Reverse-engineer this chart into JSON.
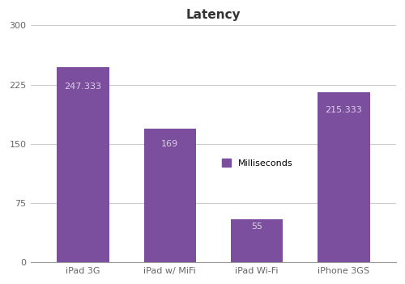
{
  "categories": [
    "iPad 3G",
    "iPad w/ MiFi",
    "iPad Wi-Fi",
    "iPhone 3GS"
  ],
  "values": [
    247.333,
    169,
    55,
    215.333
  ],
  "labels": [
    "247.333",
    "169",
    "55",
    "215.333"
  ],
  "bar_color": "#7B4F9E",
  "title": "Latency",
  "legend_label": "Milliseconds",
  "ylim": [
    0,
    300
  ],
  "yticks": [
    0,
    75,
    150,
    225,
    300
  ],
  "ytick_labels": [
    "0",
    "75",
    "150",
    "225",
    "300"
  ],
  "background_color": "#ffffff",
  "label_color": "#ddd0e8",
  "title_fontsize": 11,
  "tick_fontsize": 8,
  "bar_label_fontsize": 8,
  "bar_width": 0.6,
  "grid_color": "#cccccc",
  "spine_color": "#999999",
  "tick_color": "#666666"
}
